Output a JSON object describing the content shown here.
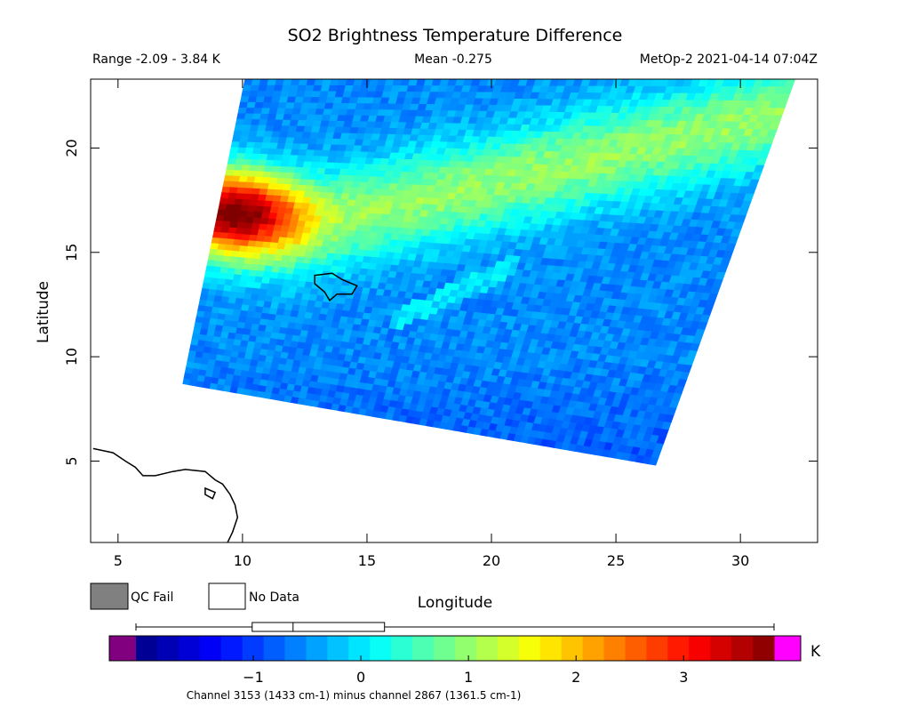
{
  "chart_data": {
    "type": "heatmap",
    "title": "SO2 Brightness Temperature Difference",
    "range_text": "Range -2.09 - 3.84 K",
    "mean_text": "Mean -0.275",
    "sat_text": "MetOp-2 2021-04-14 07:04Z",
    "xlabel": "Longitude",
    "ylabel": "Latitude",
    "xlim": [
      3.9,
      33.1
    ],
    "ylim": [
      1.1,
      23.3
    ],
    "xticks": [
      {
        "value": 5,
        "label": "5"
      },
      {
        "value": 10,
        "label": "10"
      },
      {
        "value": 15,
        "label": "15"
      },
      {
        "value": 20,
        "label": "20"
      },
      {
        "value": 25,
        "label": "25"
      },
      {
        "value": 30,
        "label": "30"
      }
    ],
    "yticks": [
      {
        "value": 5,
        "label": "5"
      },
      {
        "value": 10,
        "label": "10"
      },
      {
        "value": 15,
        "label": "15"
      },
      {
        "value": 20,
        "label": "20"
      }
    ],
    "swath_corners_lonlat": [
      [
        7.6,
        8.7
      ],
      [
        10.1,
        23.3
      ],
      [
        32.2,
        23.3
      ],
      [
        26.6,
        4.8
      ]
    ],
    "features": {
      "background_value": -0.55,
      "so2_plume": {
        "center": [
          9.5,
          17.0
        ],
        "peak_value": 3.5
      },
      "diagonal_band": {
        "from": [
          11.0,
          15.8
        ],
        "to": [
          33.0,
          22.0
        ],
        "peak_value": 1.0
      },
      "lake_chad_outline": [
        [
          12.9,
          13.9
        ],
        [
          13.6,
          14.0
        ],
        [
          14.0,
          13.7
        ],
        [
          14.6,
          13.4
        ],
        [
          14.4,
          13.0
        ],
        [
          13.8,
          13.0
        ],
        [
          13.5,
          12.7
        ],
        [
          13.3,
          13.1
        ],
        [
          12.9,
          13.5
        ]
      ],
      "coastline": [
        [
          4.0,
          5.6
        ],
        [
          4.8,
          5.4
        ],
        [
          5.3,
          5.0
        ],
        [
          5.7,
          4.7
        ],
        [
          6.0,
          4.3
        ],
        [
          6.5,
          4.3
        ],
        [
          7.2,
          4.5
        ],
        [
          7.7,
          4.6
        ],
        [
          8.5,
          4.5
        ],
        [
          8.9,
          4.1
        ],
        [
          9.2,
          3.9
        ],
        [
          9.5,
          3.4
        ],
        [
          9.7,
          2.9
        ],
        [
          9.8,
          2.3
        ],
        [
          9.6,
          1.6
        ],
        [
          9.4,
          1.1
        ]
      ],
      "island_bioko": [
        [
          8.5,
          3.7
        ],
        [
          8.9,
          3.5
        ],
        [
          8.8,
          3.2
        ],
        [
          8.5,
          3.4
        ]
      ]
    },
    "colorbar": {
      "min": -2.09,
      "max": 3.84,
      "unit": "K",
      "ticks": [
        {
          "value": -1,
          "label": "−1"
        },
        {
          "value": 0,
          "label": "0"
        },
        {
          "value": 1,
          "label": "1"
        },
        {
          "value": 2,
          "label": "2"
        },
        {
          "value": 3,
          "label": "3"
        }
      ],
      "under_color": "#800080",
      "over_color": "#ff00ff",
      "boxplot": {
        "whisker_low": -2.09,
        "q1": -1.01,
        "median": -0.63,
        "q3": 0.22,
        "whisker_high": 3.84
      }
    },
    "legend": [
      {
        "label": "QC Fail",
        "color": "#808080"
      },
      {
        "label": "No Data",
        "color": "#ffffff"
      }
    ],
    "channel_note": "Channel 3153 (1433 cm-1) minus channel 2867 (1361.5 cm-1)"
  }
}
